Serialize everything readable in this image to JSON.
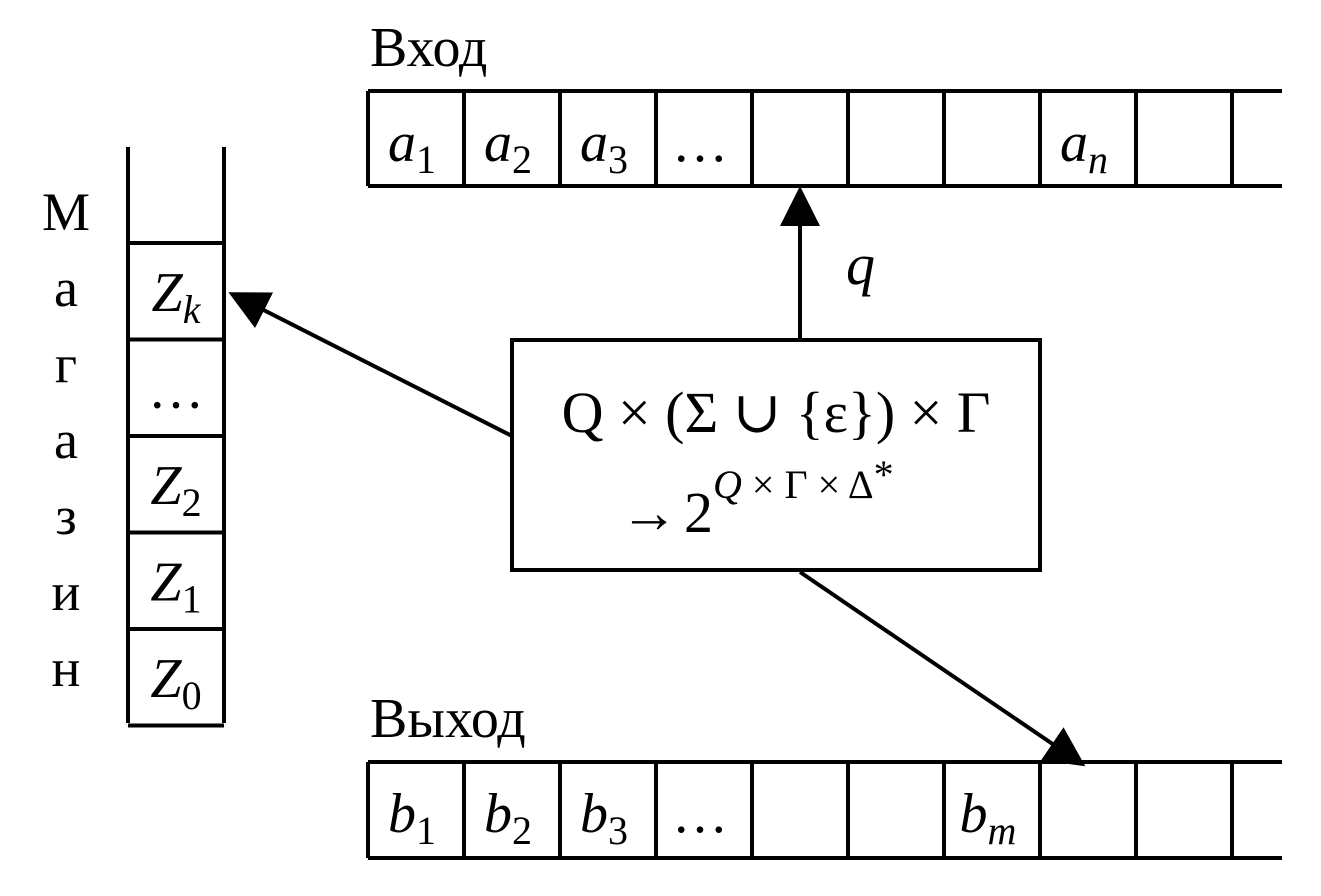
{
  "input": {
    "title": "Вход",
    "cells": [
      {
        "base": "a",
        "sub": "1"
      },
      {
        "base": "a",
        "sub": "2"
      },
      {
        "base": "a",
        "sub": "3"
      },
      {
        "base": "…",
        "sub": ""
      },
      {
        "base": "",
        "sub": ""
      },
      {
        "base": "",
        "sub": ""
      },
      {
        "base": "",
        "sub": ""
      },
      {
        "base": "a",
        "sub": "n"
      },
      {
        "base": "",
        "sub": ""
      }
    ]
  },
  "output": {
    "title": "Выход",
    "cells": [
      {
        "base": "b",
        "sub": "1"
      },
      {
        "base": "b",
        "sub": "2"
      },
      {
        "base": "b",
        "sub": "3"
      },
      {
        "base": "…",
        "sub": ""
      },
      {
        "base": "",
        "sub": ""
      },
      {
        "base": "",
        "sub": ""
      },
      {
        "base": "b",
        "sub": "m"
      },
      {
        "base": "",
        "sub": ""
      },
      {
        "base": "",
        "sub": ""
      }
    ]
  },
  "stack": {
    "title_letters": [
      "М",
      "а",
      "г",
      "а",
      "з",
      "и",
      "н"
    ],
    "cells": [
      {
        "base": "Z",
        "sub": "k"
      },
      {
        "base": "…",
        "sub": ""
      },
      {
        "base": "Z",
        "sub": "2"
      },
      {
        "base": "Z",
        "sub": "1"
      },
      {
        "base": "Z",
        "sub": "0"
      }
    ]
  },
  "control": {
    "line1": "Q × (Σ ∪ {ε}) × Γ",
    "line2_arrow": "→",
    "line2_base": "2",
    "line2_exp_q": "Q",
    "line2_exp_rest": " × Γ × Δ",
    "line2_exp_star": "*",
    "state_label": "q"
  }
}
